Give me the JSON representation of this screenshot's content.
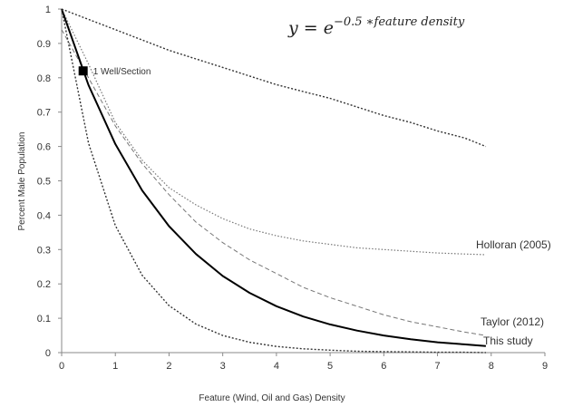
{
  "chart_data": {
    "type": "line",
    "title": "",
    "equation": {
      "base": "y  = e",
      "exponent": "−0.5 ∗feature density"
    },
    "xlabel": "Feature (Wind, Oil and Gas) Density",
    "ylabel": "Percent Male Population",
    "xlim": [
      0,
      9
    ],
    "ylim": [
      0,
      1
    ],
    "x_ticks": [
      "0",
      "1",
      "2",
      "3",
      "4",
      "5",
      "6",
      "7",
      "8",
      "9"
    ],
    "y_ticks": [
      "0",
      "0.1",
      "0.2",
      "0.3",
      "0.4",
      "0.5",
      "0.6",
      "0.7",
      "0.8",
      "0.9",
      "1"
    ],
    "grid": false,
    "series": [
      {
        "name": "",
        "style": "dotted",
        "color": "#333333",
        "x": [
          0,
          0.5,
          1,
          1.5,
          2,
          2.5,
          3,
          3.5,
          4,
          4.5,
          5,
          5.5,
          6,
          6.5,
          7,
          7.5,
          7.9
        ],
        "y": [
          1.0,
          0.97,
          0.94,
          0.91,
          0.88,
          0.855,
          0.83,
          0.805,
          0.78,
          0.76,
          0.74,
          0.715,
          0.69,
          0.67,
          0.645,
          0.625,
          0.6
        ]
      },
      {
        "name": "Holloran (2005)",
        "style": "dotted-light",
        "color": "#777777",
        "x": [
          0,
          0.5,
          1,
          1.5,
          2,
          2.5,
          3,
          3.5,
          4,
          4.5,
          5,
          5.5,
          6,
          6.5,
          7,
          7.5,
          7.9
        ],
        "y": [
          1.0,
          0.84,
          0.67,
          0.56,
          0.48,
          0.43,
          0.39,
          0.36,
          0.34,
          0.325,
          0.315,
          0.305,
          0.3,
          0.295,
          0.29,
          0.287,
          0.285
        ]
      },
      {
        "name": "Taylor (2012)",
        "style": "dashed",
        "color": "#777777",
        "x": [
          0,
          0.5,
          1,
          1.5,
          2,
          2.5,
          3,
          3.5,
          4,
          4.5,
          5,
          5.5,
          6,
          6.5,
          7,
          7.5,
          7.9
        ],
        "y": [
          0.94,
          0.8,
          0.66,
          0.55,
          0.46,
          0.38,
          0.32,
          0.27,
          0.23,
          0.19,
          0.16,
          0.135,
          0.11,
          0.09,
          0.075,
          0.06,
          0.05
        ]
      },
      {
        "name": "This study",
        "style": "solid",
        "color": "#000000",
        "x": [
          0,
          0.5,
          1,
          1.5,
          2,
          2.5,
          3,
          3.5,
          4,
          4.5,
          5,
          5.5,
          6,
          6.5,
          7,
          7.5,
          7.9
        ],
        "y": [
          1.0,
          0.779,
          0.607,
          0.472,
          0.368,
          0.287,
          0.223,
          0.174,
          0.135,
          0.105,
          0.082,
          0.064,
          0.05,
          0.039,
          0.03,
          0.024,
          0.019
        ]
      },
      {
        "name": "",
        "style": "dotted",
        "color": "#333333",
        "x": [
          0,
          0.5,
          1,
          1.5,
          2,
          2.5,
          3,
          3.5,
          4,
          4.5,
          5,
          5.5,
          6,
          6.5,
          7,
          7.5,
          7.9
        ],
        "y": [
          1.0,
          0.61,
          0.37,
          0.225,
          0.137,
          0.083,
          0.05,
          0.03,
          0.018,
          0.011,
          0.007,
          0.004,
          0.003,
          0.002,
          0.001,
          0.001,
          0.0
        ]
      }
    ],
    "points": [
      {
        "label": "1 Well/Section",
        "x": 0.4,
        "y": 0.82
      }
    ]
  }
}
